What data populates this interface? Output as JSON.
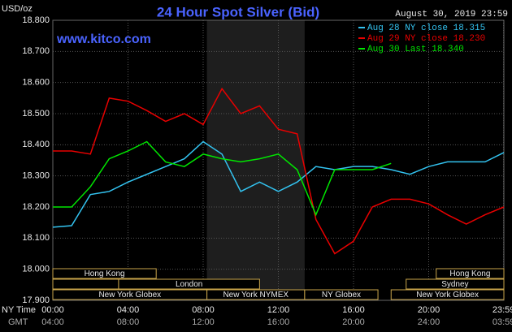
{
  "chart_data": {
    "type": "line",
    "title": "24 Hour Spot Silver (Bid)",
    "y_label": "USD/oz",
    "timestamp": "August 30, 2019 23:59",
    "watermark": "www.kitco.com",
    "x_row_label": "NY Time",
    "x2_row_label": "GMT",
    "x": [
      0,
      1,
      2,
      3,
      4,
      5,
      6,
      7,
      8,
      9,
      10,
      11,
      12,
      13,
      14,
      15,
      16,
      17,
      18,
      19,
      20,
      21,
      22,
      23,
      24
    ],
    "xlim": [
      0,
      24
    ],
    "xticks": [
      {
        "value": 0,
        "label": "00:00"
      },
      {
        "value": 4,
        "label": "04:00"
      },
      {
        "value": 8,
        "label": "08:00"
      },
      {
        "value": 12,
        "label": "12:00"
      },
      {
        "value": 16,
        "label": "16:00"
      },
      {
        "value": 20,
        "label": "20:00"
      },
      {
        "value": 23.983,
        "label": "23:59"
      }
    ],
    "x2tick_labels": [
      "04:00",
      "08:00",
      "12:00",
      "16:00",
      "20:00",
      "24:00",
      "03:59"
    ],
    "ylim": [
      17.9,
      18.8
    ],
    "yticks": [
      {
        "value": 17.9,
        "label": "17.900"
      },
      {
        "value": 18.0,
        "label": "18.000"
      },
      {
        "value": 18.1,
        "label": "18.100"
      },
      {
        "value": 18.2,
        "label": "18.200"
      },
      {
        "value": 18.3,
        "label": "18.300"
      },
      {
        "value": 18.4,
        "label": "18.400"
      },
      {
        "value": 18.5,
        "label": "18.500"
      },
      {
        "value": 18.6,
        "label": "18.600"
      },
      {
        "value": 18.7,
        "label": "18.700"
      },
      {
        "value": 18.8,
        "label": "18.800"
      }
    ],
    "grid": true,
    "legend": "top-right",
    "shaded_range": [
      8.2,
      13.4
    ],
    "series": [
      {
        "name": "Aug 28 NY close 18.315",
        "color": "#33c3f0",
        "values": [
          18.135,
          18.14,
          18.24,
          18.25,
          18.28,
          18.305,
          18.33,
          18.355,
          18.41,
          18.37,
          18.25,
          18.28,
          18.25,
          18.28,
          18.33,
          18.32,
          18.33,
          18.33,
          18.32,
          18.305,
          18.33,
          18.345,
          18.345,
          18.345,
          18.375
        ]
      },
      {
        "name": "Aug 29 NY close 18.230",
        "color": "#e80000",
        "values": [
          18.38,
          18.38,
          18.37,
          18.55,
          18.54,
          18.51,
          18.475,
          18.5,
          18.465,
          18.58,
          18.5,
          18.525,
          18.45,
          18.435,
          18.16,
          18.05,
          18.09,
          18.2,
          18.225,
          18.225,
          18.21,
          18.175,
          18.145,
          18.175,
          18.2
        ]
      },
      {
        "name": "Aug 30 Last 18.340",
        "color": "#00e600",
        "values": [
          18.2,
          18.2,
          18.265,
          18.355,
          18.38,
          18.41,
          18.345,
          18.33,
          18.37,
          18.355,
          18.345,
          18.355,
          18.37,
          18.32,
          18.175,
          18.32,
          18.32,
          18.32,
          18.34,
          null,
          null,
          null,
          null,
          null,
          null
        ]
      }
    ],
    "sessions": [
      {
        "label": "Hong Kong",
        "start": 0,
        "end": 5.5,
        "row": 0
      },
      {
        "label": "Hong Kong",
        "start": 20.4,
        "end": 24,
        "row": 0
      },
      {
        "start": 0,
        "end": 3.5,
        "row": 1
      },
      {
        "label": "London",
        "start": 3.5,
        "end": 11.0,
        "row": 1
      },
      {
        "label": "Sydney",
        "start": 18.8,
        "end": 24,
        "row": 1
      },
      {
        "label": "New York Globex",
        "start": 0,
        "end": 8.2,
        "row": 2
      },
      {
        "label": "New York NYMEX",
        "start": 8.2,
        "end": 13.4,
        "row": 2
      },
      {
        "label": "NY Globex",
        "start": 13.4,
        "end": 17.3,
        "row": 2
      },
      {
        "label": "New York Globex",
        "start": 18.0,
        "end": 24,
        "row": 2
      }
    ]
  }
}
